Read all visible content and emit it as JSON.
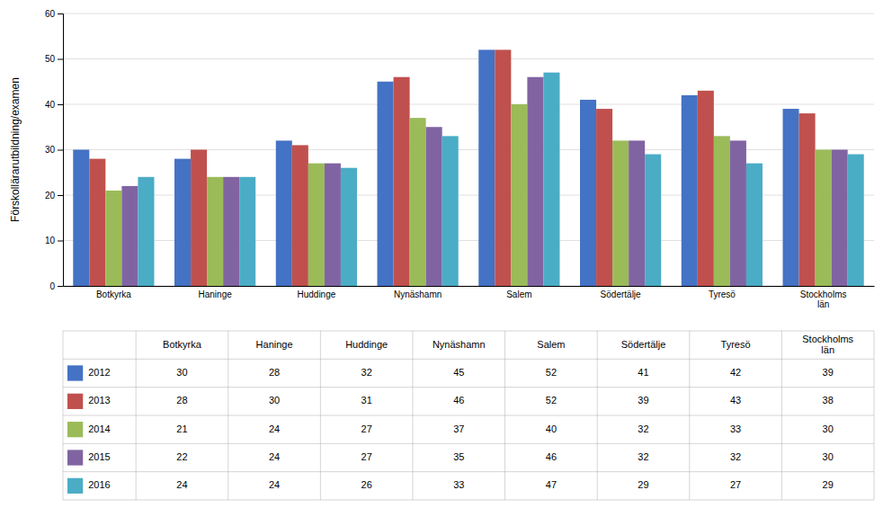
{
  "chart_data": {
    "type": "bar",
    "categories": [
      "Botkyrka",
      "Haninge",
      "Huddinge",
      "Nynäshamn",
      "Salem",
      "Södertälje",
      "Tyresö",
      "Stockholms\nlän"
    ],
    "series": [
      {
        "name": "2012",
        "color": "#4472C4",
        "values": [
          30,
          28,
          32,
          45,
          52,
          41,
          42,
          39
        ]
      },
      {
        "name": "2013",
        "color": "#C0504D",
        "values": [
          28,
          30,
          31,
          46,
          52,
          39,
          43,
          38
        ]
      },
      {
        "name": "2014",
        "color": "#9BBB59",
        "values": [
          21,
          24,
          27,
          37,
          40,
          32,
          33,
          30
        ]
      },
      {
        "name": "2015",
        "color": "#8064A2",
        "values": [
          22,
          24,
          27,
          35,
          46,
          32,
          32,
          30
        ]
      },
      {
        "name": "2016",
        "color": "#4BACC6",
        "values": [
          24,
          24,
          26,
          33,
          47,
          29,
          27,
          29
        ]
      }
    ],
    "ylabel": "Förskollärarutbildning/examen",
    "ylim": [
      0,
      60
    ],
    "yticks": [
      0,
      10,
      20,
      30,
      40,
      50,
      60
    ],
    "grid": true
  }
}
